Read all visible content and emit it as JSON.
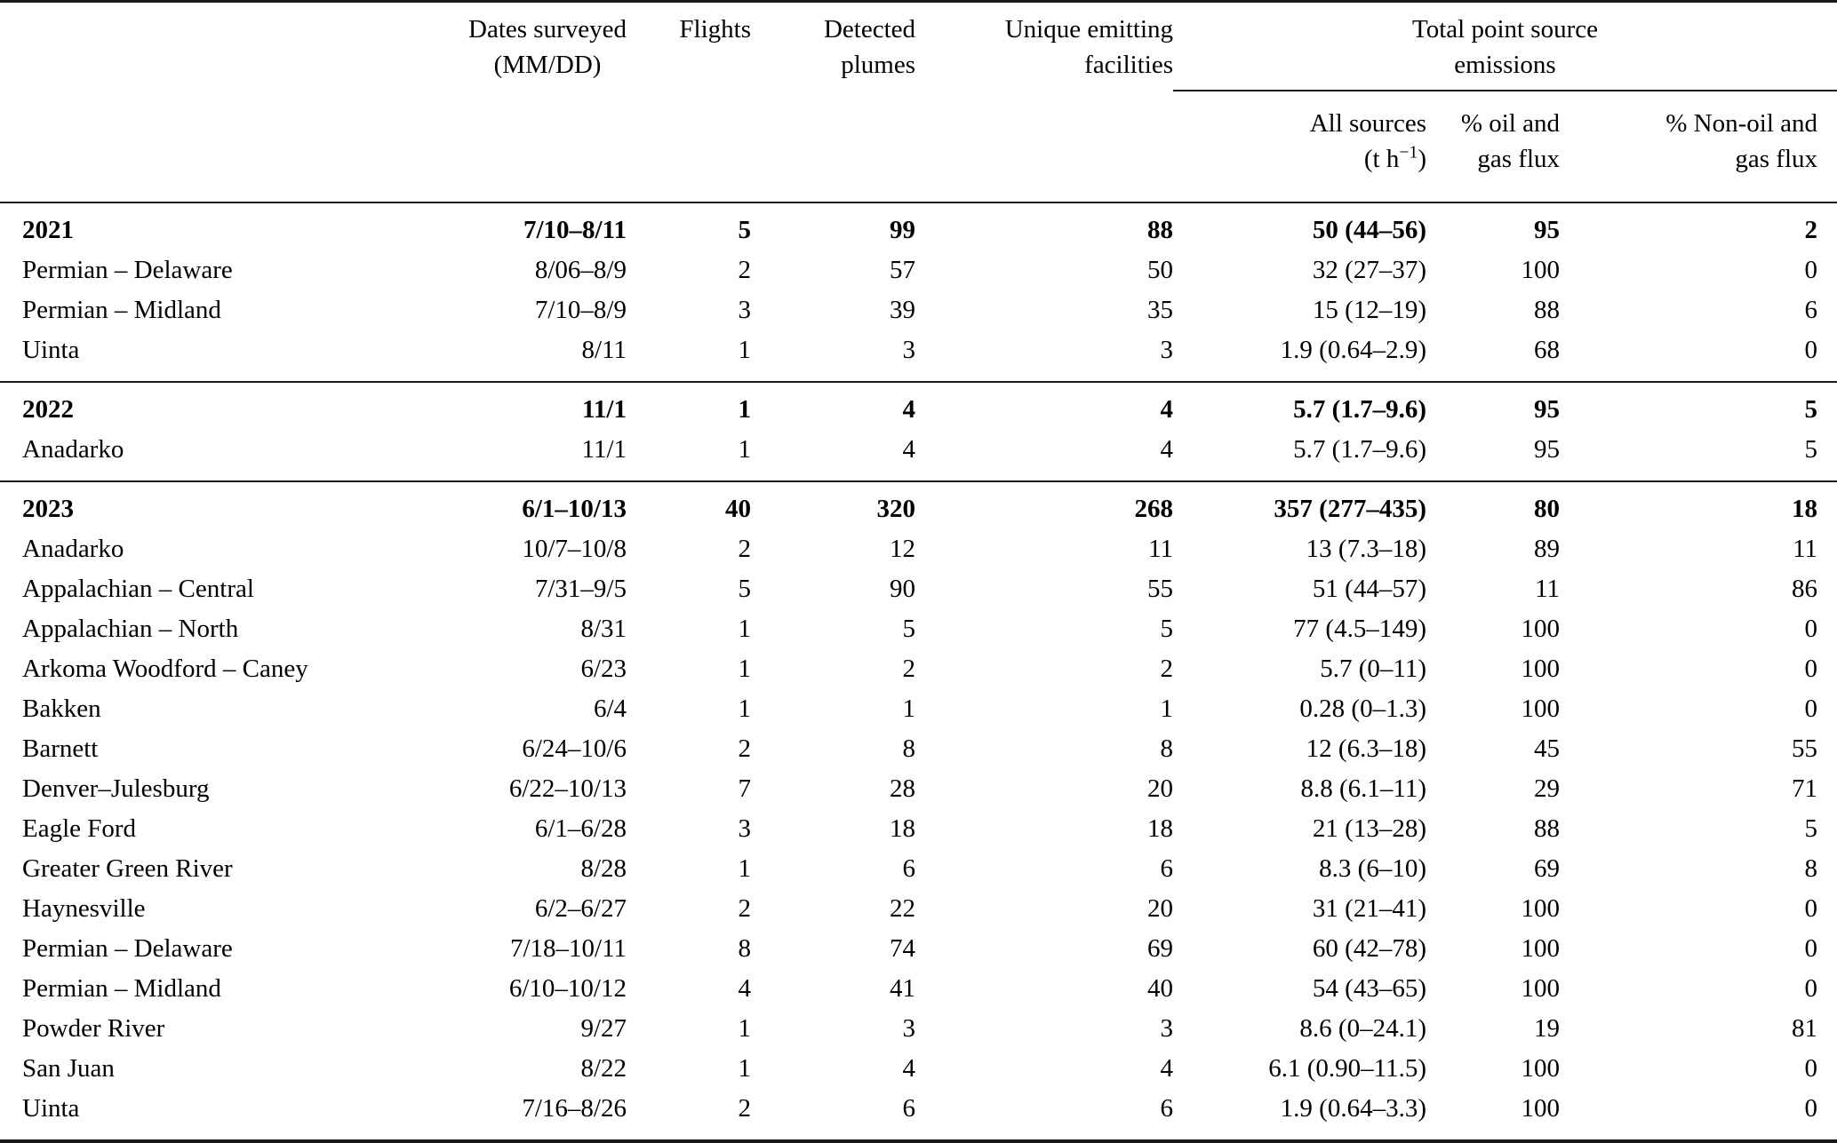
{
  "table": {
    "header": {
      "corner": "",
      "dates_line1": "Dates surveyed",
      "dates_line2": "(MM/DD)",
      "flights": "Flights",
      "plumes_line1": "Detected",
      "plumes_line2": "plumes",
      "facilities_line1": "Unique emitting",
      "facilities_line2": "facilities",
      "tpse_line1": "Total point source",
      "tpse_line2": "emissions",
      "all_sources_line1": "All sources",
      "all_sources_unit_prefix": "(t h",
      "all_sources_unit_sup": "−1",
      "all_sources_unit_suffix": ")",
      "pct_oil_line1": "% oil and",
      "pct_oil_line2": "gas flux",
      "pct_nonoil_line1": "% Non-oil and",
      "pct_nonoil_line2": "gas flux"
    },
    "sections": [
      {
        "summary": {
          "name": "2021",
          "dates": "7/10–8/11",
          "flights": "5",
          "plumes": "99",
          "facilities": "88",
          "all_sources": "50 (44–56)",
          "pct_oil": "95",
          "pct_nonoil": "2"
        },
        "rows": [
          {
            "name": "Permian – Delaware",
            "dates": "8/06–8/9",
            "flights": "2",
            "plumes": "57",
            "facilities": "50",
            "all_sources": "32 (27–37)",
            "pct_oil": "100",
            "pct_nonoil": "0"
          },
          {
            "name": "Permian – Midland",
            "dates": "7/10–8/9",
            "flights": "3",
            "plumes": "39",
            "facilities": "35",
            "all_sources": "15 (12–19)",
            "pct_oil": "88",
            "pct_nonoil": "6"
          },
          {
            "name": "Uinta",
            "dates": "8/11",
            "flights": "1",
            "plumes": "3",
            "facilities": "3",
            "all_sources": "1.9 (0.64–2.9)",
            "pct_oil": "68",
            "pct_nonoil": "0"
          }
        ]
      },
      {
        "summary": {
          "name": "2022",
          "dates": "11/1",
          "flights": "1",
          "plumes": "4",
          "facilities": "4",
          "all_sources": "5.7 (1.7–9.6)",
          "pct_oil": "95",
          "pct_nonoil": "5"
        },
        "rows": [
          {
            "name": "Anadarko",
            "dates": "11/1",
            "flights": "1",
            "plumes": "4",
            "facilities": "4",
            "all_sources": "5.7 (1.7–9.6)",
            "pct_oil": "95",
            "pct_nonoil": "5"
          }
        ]
      },
      {
        "summary": {
          "name": "2023",
          "dates": "6/1–10/13",
          "flights": "40",
          "plumes": "320",
          "facilities": "268",
          "all_sources": "357 (277–435)",
          "pct_oil": "80",
          "pct_nonoil": "18"
        },
        "rows": [
          {
            "name": "Anadarko",
            "dates": "10/7–10/8",
            "flights": "2",
            "plumes": "12",
            "facilities": "11",
            "all_sources": "13 (7.3–18)",
            "pct_oil": "89",
            "pct_nonoil": "11"
          },
          {
            "name": "Appalachian – Central",
            "dates": "7/31–9/5",
            "flights": "5",
            "plumes": "90",
            "facilities": "55",
            "all_sources": "51 (44–57)",
            "pct_oil": "11",
            "pct_nonoil": "86"
          },
          {
            "name": "Appalachian – North",
            "dates": "8/31",
            "flights": "1",
            "plumes": "5",
            "facilities": "5",
            "all_sources": "77 (4.5–149)",
            "pct_oil": "100",
            "pct_nonoil": "0"
          },
          {
            "name": "Arkoma Woodford – Caney",
            "dates": "6/23",
            "flights": "1",
            "plumes": "2",
            "facilities": "2",
            "all_sources": "5.7 (0–11)",
            "pct_oil": "100",
            "pct_nonoil": "0"
          },
          {
            "name": "Bakken",
            "dates": "6/4",
            "flights": "1",
            "plumes": "1",
            "facilities": "1",
            "all_sources": "0.28 (0–1.3)",
            "pct_oil": "100",
            "pct_nonoil": "0"
          },
          {
            "name": "Barnett",
            "dates": "6/24–10/6",
            "flights": "2",
            "plumes": "8",
            "facilities": "8",
            "all_sources": "12 (6.3–18)",
            "pct_oil": "45",
            "pct_nonoil": "55"
          },
          {
            "name": "Denver–Julesburg",
            "dates": "6/22–10/13",
            "flights": "7",
            "plumes": "28",
            "facilities": "20",
            "all_sources": "8.8 (6.1–11)",
            "pct_oil": "29",
            "pct_nonoil": "71"
          },
          {
            "name": "Eagle Ford",
            "dates": "6/1–6/28",
            "flights": "3",
            "plumes": "18",
            "facilities": "18",
            "all_sources": "21 (13–28)",
            "pct_oil": "88",
            "pct_nonoil": "5"
          },
          {
            "name": "Greater Green River",
            "dates": "8/28",
            "flights": "1",
            "plumes": "6",
            "facilities": "6",
            "all_sources": "8.3 (6–10)",
            "pct_oil": "69",
            "pct_nonoil": "8"
          },
          {
            "name": "Haynesville",
            "dates": "6/2–6/27",
            "flights": "2",
            "plumes": "22",
            "facilities": "20",
            "all_sources": "31 (21–41)",
            "pct_oil": "100",
            "pct_nonoil": "0"
          },
          {
            "name": "Permian – Delaware",
            "dates": "7/18–10/11",
            "flights": "8",
            "plumes": "74",
            "facilities": "69",
            "all_sources": "60 (42–78)",
            "pct_oil": "100",
            "pct_nonoil": "0"
          },
          {
            "name": "Permian – Midland",
            "dates": "6/10–10/12",
            "flights": "4",
            "plumes": "41",
            "facilities": "40",
            "all_sources": "54 (43–65)",
            "pct_oil": "100",
            "pct_nonoil": "0"
          },
          {
            "name": "Powder River",
            "dates": "9/27",
            "flights": "1",
            "plumes": "3",
            "facilities": "3",
            "all_sources": "8.6 (0–24.1)",
            "pct_oil": "19",
            "pct_nonoil": "81"
          },
          {
            "name": "San Juan",
            "dates": "8/22",
            "flights": "1",
            "plumes": "4",
            "facilities": "4",
            "all_sources": "6.1 (0.90–11.5)",
            "pct_oil": "100",
            "pct_nonoil": "0"
          },
          {
            "name": "Uinta",
            "dates": "7/16–8/26",
            "flights": "2",
            "plumes": "6",
            "facilities": "6",
            "all_sources": "1.9 (0.64–3.3)",
            "pct_oil": "100",
            "pct_nonoil": "0"
          }
        ]
      }
    ]
  }
}
